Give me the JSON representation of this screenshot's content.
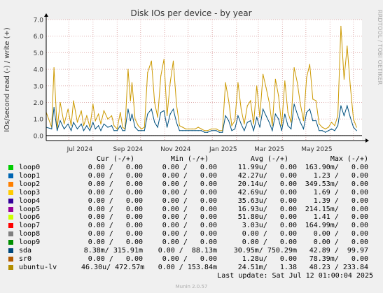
{
  "chart_data": {
    "type": "line",
    "title": "Disk IOs per device - by year",
    "ylabel": "IOs/second read (-) / write (+)",
    "ylim": [
      -0.3,
      7.0
    ],
    "yticks": [
      "0.0",
      "1.0",
      "2.0",
      "3.0",
      "4.0",
      "5.0",
      "6.0",
      "7.0"
    ],
    "xticks": [
      "Jul 2024",
      "Sep 2024",
      "Nov 2024",
      "Jan 2025",
      "Mar 2025",
      "May 2025"
    ],
    "x_domain": [
      "2024-06-02",
      "2025-07-12"
    ],
    "grid": true,
    "series": [
      {
        "name": "ubuntu-lv",
        "color": "#cc9900",
        "x": [
          "2024-06-02",
          "2024-06-09",
          "2024-06-12",
          "2024-06-16",
          "2024-06-20",
          "2024-06-25",
          "2024-06-30",
          "2024-07-04",
          "2024-07-07",
          "2024-07-12",
          "2024-07-17",
          "2024-07-20",
          "2024-07-24",
          "2024-07-28",
          "2024-08-01",
          "2024-08-04",
          "2024-08-08",
          "2024-08-11",
          "2024-08-15",
          "2024-08-20",
          "2024-08-25",
          "2024-08-28",
          "2024-09-01",
          "2024-09-05",
          "2024-09-08",
          "2024-09-11",
          "2024-09-15",
          "2024-09-18",
          "2024-09-20",
          "2024-09-24",
          "2024-09-28",
          "2024-10-02",
          "2024-10-06",
          "2024-10-10",
          "2024-10-15",
          "2024-10-19",
          "2024-10-23",
          "2024-10-27",
          "2024-10-31",
          "2024-11-04",
          "2024-11-08",
          "2024-11-12",
          "2024-11-16",
          "2024-11-20",
          "2024-11-24",
          "2024-11-28",
          "2024-12-02",
          "2024-12-06",
          "2024-12-10",
          "2024-12-14",
          "2024-12-18",
          "2024-12-22",
          "2024-12-26",
          "2024-12-31",
          "2025-01-06",
          "2025-01-10",
          "2025-01-14",
          "2025-01-18",
          "2025-01-22",
          "2025-01-26",
          "2025-01-30",
          "2025-02-03",
          "2025-02-07",
          "2025-02-11",
          "2025-02-15",
          "2025-02-19",
          "2025-02-23",
          "2025-02-27",
          "2025-03-03",
          "2025-03-07",
          "2025-03-11",
          "2025-03-15",
          "2025-03-19",
          "2025-03-23",
          "2025-03-27",
          "2025-03-31",
          "2025-04-04",
          "2025-04-08",
          "2025-04-12",
          "2025-04-16",
          "2025-04-20",
          "2025-04-24",
          "2025-04-28",
          "2025-05-02",
          "2025-05-06",
          "2025-05-10",
          "2025-05-14",
          "2025-05-18",
          "2025-05-22",
          "2025-05-26",
          "2025-05-30",
          "2025-06-03",
          "2025-06-07",
          "2025-06-11",
          "2025-06-15",
          "2025-06-19",
          "2025-06-23",
          "2025-06-27",
          "2025-07-01",
          "2025-07-05"
        ],
        "y": [
          1.4,
          0.5,
          4.1,
          0.4,
          2.0,
          0.7,
          1.6,
          0.6,
          2.1,
          0.8,
          1.5,
          0.6,
          1.2,
          0.5,
          1.9,
          0.9,
          1.3,
          0.7,
          1.5,
          1.0,
          1.2,
          0.6,
          0.4,
          1.4,
          0.5,
          0.4,
          4.0,
          2.1,
          3.2,
          1.0,
          0.6,
          0.4,
          0.5,
          3.8,
          4.5,
          2.0,
          1.1,
          3.6,
          4.6,
          1.2,
          3.2,
          4.5,
          1.9,
          0.6,
          0.5,
          0.4,
          0.4,
          0.4,
          0.4,
          0.5,
          0.4,
          0.3,
          0.3,
          0.4,
          0.4,
          0.3,
          0.3,
          3.2,
          2.1,
          0.6,
          0.9,
          3.2,
          1.6,
          0.7,
          1.8,
          2.1,
          0.7,
          3.0,
          1.1,
          3.7,
          2.9,
          2.0,
          0.6,
          3.4,
          2.4,
          0.6,
          3.3,
          1.4,
          0.8,
          4.1,
          3.2,
          1.9,
          0.9,
          3.5,
          4.3,
          2.2,
          2.1,
          0.7,
          0.5,
          0.4,
          0.5,
          0.8,
          0.6,
          1.2,
          6.6,
          3.4,
          5.4,
          3.0,
          1.0,
          0.5
        ]
      },
      {
        "name": "sda",
        "color": "#00507e",
        "x": [
          "2024-06-02",
          "2024-06-09",
          "2024-06-12",
          "2024-06-16",
          "2024-06-20",
          "2024-06-25",
          "2024-06-30",
          "2024-07-04",
          "2024-07-07",
          "2024-07-12",
          "2024-07-17",
          "2024-07-20",
          "2024-07-24",
          "2024-07-28",
          "2024-08-01",
          "2024-08-04",
          "2024-08-08",
          "2024-08-11",
          "2024-08-15",
          "2024-08-20",
          "2024-08-25",
          "2024-08-28",
          "2024-09-01",
          "2024-09-05",
          "2024-09-08",
          "2024-09-11",
          "2024-09-15",
          "2024-09-18",
          "2024-09-20",
          "2024-09-24",
          "2024-09-28",
          "2024-10-02",
          "2024-10-06",
          "2024-10-10",
          "2024-10-15",
          "2024-10-19",
          "2024-10-23",
          "2024-10-27",
          "2024-10-31",
          "2024-11-04",
          "2024-11-08",
          "2024-11-12",
          "2024-11-16",
          "2024-11-20",
          "2024-11-24",
          "2024-11-28",
          "2024-12-02",
          "2024-12-06",
          "2024-12-10",
          "2024-12-14",
          "2024-12-18",
          "2024-12-22",
          "2024-12-26",
          "2024-12-31",
          "2025-01-06",
          "2025-01-10",
          "2025-01-14",
          "2025-01-18",
          "2025-01-22",
          "2025-01-26",
          "2025-01-30",
          "2025-02-03",
          "2025-02-07",
          "2025-02-11",
          "2025-02-15",
          "2025-02-19",
          "2025-02-23",
          "2025-02-27",
          "2025-03-03",
          "2025-03-07",
          "2025-03-11",
          "2025-03-15",
          "2025-03-19",
          "2025-03-23",
          "2025-03-27",
          "2025-03-31",
          "2025-04-04",
          "2025-04-08",
          "2025-04-12",
          "2025-04-16",
          "2025-04-20",
          "2025-04-24",
          "2025-04-28",
          "2025-05-02",
          "2025-05-06",
          "2025-05-10",
          "2025-05-14",
          "2025-05-18",
          "2025-05-22",
          "2025-05-26",
          "2025-05-30",
          "2025-06-03",
          "2025-06-07",
          "2025-06-11",
          "2025-06-15",
          "2025-06-19",
          "2025-06-23",
          "2025-06-27",
          "2025-07-01",
          "2025-07-05"
        ],
        "y": [
          0.5,
          0.4,
          1.7,
          0.3,
          0.9,
          0.4,
          0.7,
          0.3,
          0.8,
          0.4,
          0.7,
          0.3,
          0.6,
          0.3,
          0.8,
          0.4,
          0.6,
          0.3,
          0.7,
          0.5,
          0.6,
          0.3,
          0.3,
          0.6,
          0.3,
          0.3,
          1.6,
          0.9,
          1.3,
          0.5,
          0.3,
          0.3,
          0.3,
          1.3,
          1.6,
          0.8,
          0.5,
          1.4,
          1.5,
          0.5,
          1.3,
          1.6,
          0.8,
          0.3,
          0.3,
          0.3,
          0.3,
          0.3,
          0.3,
          0.3,
          0.3,
          0.2,
          0.2,
          0.3,
          0.3,
          0.2,
          0.2,
          1.2,
          0.9,
          0.3,
          0.4,
          1.2,
          0.7,
          0.3,
          0.8,
          0.9,
          0.3,
          1.1,
          0.5,
          1.6,
          1.2,
          0.8,
          0.3,
          1.3,
          1.0,
          0.3,
          1.3,
          0.6,
          0.4,
          1.9,
          1.3,
          0.8,
          0.4,
          1.4,
          1.6,
          0.9,
          0.9,
          0.3,
          0.3,
          0.2,
          0.3,
          0.4,
          0.3,
          0.6,
          1.8,
          1.2,
          1.8,
          1.1,
          0.5,
          0.3
        ]
      }
    ],
    "legend_headers": [
      "Cur (-/+)",
      "Min (-/+)",
      "Avg (-/+)",
      "Max (-/+)"
    ],
    "legend": [
      {
        "name": "loop0",
        "color": "#00cc00",
        "cur": "0.00 /   0.00",
        "min": "0.00 /   0.00",
        "avg": "11.99u/   0.00",
        "max": "163.90m/   0.00"
      },
      {
        "name": "loop1",
        "color": "#0066b3",
        "cur": "0.00 /   0.00",
        "min": "0.00 /   0.00",
        "avg": "42.27u/   0.00",
        "max": "1.23 /   0.00"
      },
      {
        "name": "loop2",
        "color": "#ff8000",
        "cur": "0.00 /   0.00",
        "min": "0.00 /   0.00",
        "avg": "20.14u/   0.00",
        "max": "349.53m/   0.00"
      },
      {
        "name": "loop3",
        "color": "#ffcc00",
        "cur": "0.00 /   0.00",
        "min": "0.00 /   0.00",
        "avg": "42.69u/   0.00",
        "max": "1.69 /   0.00"
      },
      {
        "name": "loop4",
        "color": "#330099",
        "cur": "0.00 /   0.00",
        "min": "0.00 /   0.00",
        "avg": "35.63u/   0.00",
        "max": "1.39 /   0.00"
      },
      {
        "name": "loop5",
        "color": "#990099",
        "cur": "0.00 /   0.00",
        "min": "0.00 /   0.00",
        "avg": "16.93u/   0.00",
        "max": "214.15m/   0.00"
      },
      {
        "name": "loop6",
        "color": "#ccff00",
        "cur": "0.00 /   0.00",
        "min": "0.00 /   0.00",
        "avg": "51.80u/   0.00",
        "max": "1.41 /   0.00"
      },
      {
        "name": "loop7",
        "color": "#ff0000",
        "cur": "0.00 /   0.00",
        "min": "0.00 /   0.00",
        "avg": "3.03u/   0.00",
        "max": "164.99m/   0.00"
      },
      {
        "name": "loop8",
        "color": "#808080",
        "cur": "0.00 /   0.00",
        "min": "0.00 /   0.00",
        "avg": "0.00 /   0.00",
        "max": "0.00 /   0.00"
      },
      {
        "name": "loop9",
        "color": "#008f00",
        "cur": "0.00 /   0.00",
        "min": "0.00 /   0.00",
        "avg": "0.00 /   0.00",
        "max": "0.00 /   0.00"
      },
      {
        "name": "sda",
        "color": "#00487d",
        "cur": "8.38m/ 315.91m",
        "min": "0.00 /  88.13m",
        "avg": "30.95m/ 750.29m",
        "max": "42.89 /  99.97"
      },
      {
        "name": "sr0",
        "color": "#b35a00",
        "cur": "0.00 /   0.00",
        "min": "0.00 /   0.00",
        "avg": "1.28u/   0.00",
        "max": "78.39m/   0.00"
      },
      {
        "name": "ubuntu-lv",
        "color": "#b38f00",
        "cur": "46.30u/ 472.57m",
        "min": "0.00 / 153.84m",
        "avg": "24.51m/   1.38",
        "max": "48.23 / 233.84"
      }
    ]
  },
  "last_update": "Last update: Sat Jul 12 01:00:04 2025",
  "munin_version": "Munin 2.0.57",
  "watermark": "RRDTOOL / TOBI OETIKER"
}
